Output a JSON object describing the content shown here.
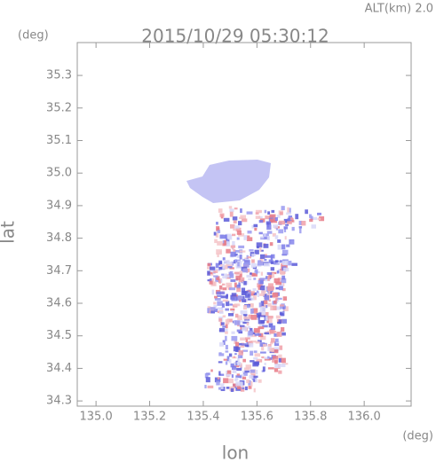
{
  "chart_data": {
    "type": "map",
    "title": "2015/10/29 05:30:12",
    "annotation": "ALT(km) 2.0",
    "x_label": "lon",
    "y_label": "lat",
    "x_unit": "(deg)",
    "y_unit": "(deg)",
    "xlim": [
      134.93,
      136.175
    ],
    "ylim": [
      34.284,
      35.401
    ],
    "xticks": [
      {
        "value": 135,
        "label": "135.0"
      },
      135.2,
      135.4,
      135.6,
      135.8,
      {
        "value": 136,
        "label": "136.0"
      }
    ],
    "yticks": [
      34.3,
      34.4,
      34.5,
      34.6,
      34.7,
      34.8,
      34.9,
      {
        "value": 35,
        "label": "35.0"
      },
      35.1,
      35.2,
      35.3
    ]
  }
}
